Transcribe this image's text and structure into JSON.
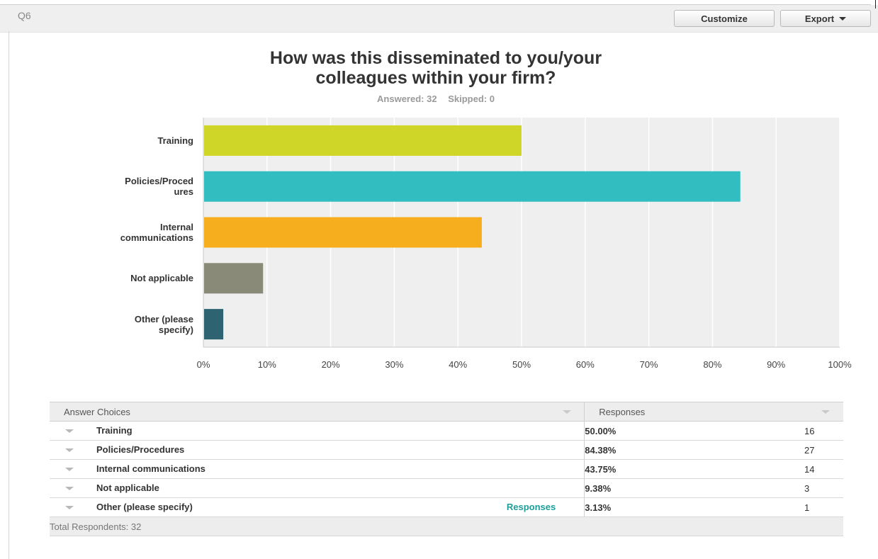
{
  "question": {
    "label": "Q6",
    "customize_label": "Customize",
    "export_label": "Export",
    "title_line1": "How was this disseminated to you/your",
    "title_line2": "colleagues within your firm?",
    "answered": "Answered: 32",
    "skipped": "Skipped: 0"
  },
  "chart_data": {
    "type": "bar",
    "orientation": "horizontal",
    "categories": [
      "Training",
      "Policies/Procedures",
      "Internal communications",
      "Not applicable",
      "Other (please specify)"
    ],
    "category_labels": [
      [
        "Training"
      ],
      [
        "Policies/Proced",
        "ures"
      ],
      [
        "Internal",
        "communications"
      ],
      [
        "Not applicable"
      ],
      [
        "Other (please",
        "specify)"
      ]
    ],
    "values": [
      50.0,
      84.38,
      43.75,
      9.38,
      3.13
    ],
    "colors": [
      "#cfd628",
      "#32bec0",
      "#f6ad1e",
      "#8a8a79",
      "#2e6371"
    ],
    "xlim": [
      0,
      100
    ],
    "x_tick_labels": [
      "0%",
      "10%",
      "20%",
      "30%",
      "40%",
      "50%",
      "60%",
      "70%",
      "80%",
      "90%",
      "100%"
    ],
    "grid": true,
    "title": "How was this disseminated to you/your colleagues within your firm?"
  },
  "table": {
    "header_choices": "Answer Choices",
    "header_responses": "Responses",
    "rows": [
      {
        "choice": "Training",
        "percent": "50.00%",
        "count": "16"
      },
      {
        "choice": "Policies/Procedures",
        "percent": "84.38%",
        "count": "27"
      },
      {
        "choice": "Internal communications",
        "percent": "43.75%",
        "count": "14"
      },
      {
        "choice": "Not applicable",
        "percent": "9.38%",
        "count": "3"
      },
      {
        "choice": "Other (please specify)",
        "percent": "3.13%",
        "count": "1",
        "link": "Responses"
      }
    ],
    "total": "Total Respondents: 32"
  }
}
